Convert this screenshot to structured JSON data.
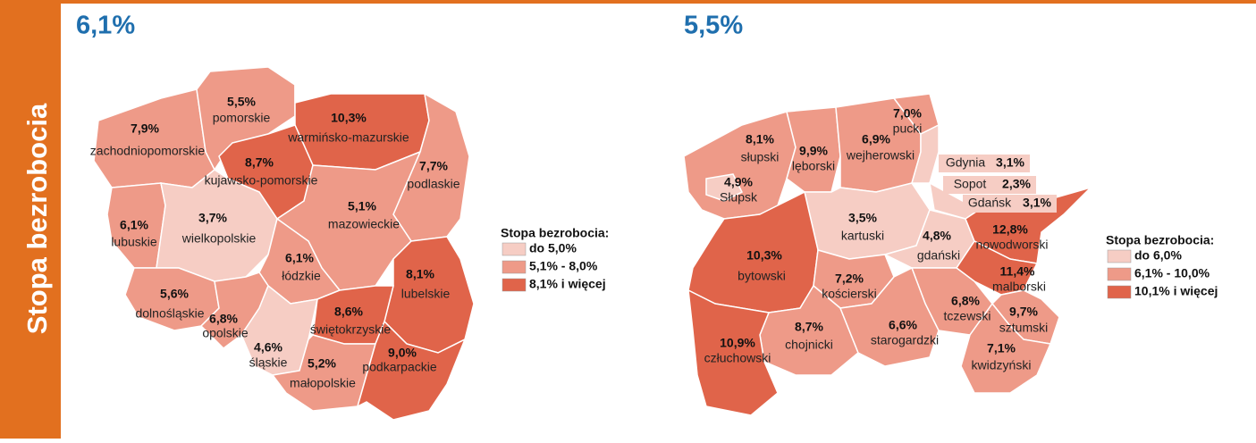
{
  "sidebar_title": "Stopa bezrobocia",
  "maps": [
    {
      "headline": "6,1%",
      "regions": [
        {
          "name": "zachodniopomorskie",
          "value": "7,9%",
          "color": "#ee9a88"
        },
        {
          "name": "pomorskie",
          "value": "5,5%",
          "color": "#ee9a88"
        },
        {
          "name": "warmińsko-mazurskie",
          "value": "10,3%",
          "color": "#e0644a"
        },
        {
          "name": "kujawsko-pomorskie",
          "value": "8,7%",
          "color": "#e0644a"
        },
        {
          "name": "podlaskie",
          "value": "7,7%",
          "color": "#ee9a88"
        },
        {
          "name": "lubuskie",
          "value": "6,1%",
          "color": "#ee9a88"
        },
        {
          "name": "wielkopolskie",
          "value": "3,7%",
          "color": "#f6cdc4"
        },
        {
          "name": "mazowieckie",
          "value": "5,1%",
          "color": "#ee9a88"
        },
        {
          "name": "łódzkie",
          "value": "6,1%",
          "color": "#ee9a88"
        },
        {
          "name": "lubelskie",
          "value": "8,1%",
          "color": "#e0644a"
        },
        {
          "name": "dolnośląskie",
          "value": "5,6%",
          "color": "#ee9a88"
        },
        {
          "name": "opolskie",
          "value": "6,8%",
          "color": "#ee9a88"
        },
        {
          "name": "śląskie",
          "value": "4,6%",
          "color": "#f6cdc4"
        },
        {
          "name": "świętokrzyskie",
          "value": "8,6%",
          "color": "#e0644a"
        },
        {
          "name": "małopolskie",
          "value": "5,2%",
          "color": "#ee9a88"
        },
        {
          "name": "podkarpackie",
          "value": "9,0%",
          "color": "#e0644a"
        }
      ],
      "legend": {
        "title": "Stopa bezrobocia:",
        "items": [
          {
            "label": "do 5,0%",
            "color": "#f6cdc4"
          },
          {
            "label": "5,1% - 8,0%",
            "color": "#ee9a88"
          },
          {
            "label": "8,1% i więcej",
            "color": "#e0644a"
          }
        ]
      }
    },
    {
      "headline": "5,5%",
      "regions": [
        {
          "name": "słupski",
          "value": "8,1%",
          "color": "#ee9a88"
        },
        {
          "name": "Słupsk",
          "value": "4,9%",
          "color": "#f6cdc4"
        },
        {
          "name": "lęborski",
          "value": "9,9%",
          "color": "#ee9a88"
        },
        {
          "name": "wejherowski",
          "value": "6,9%",
          "color": "#ee9a88"
        },
        {
          "name": "pucki",
          "value": "7,0%",
          "color": "#ee9a88"
        },
        {
          "name": "Gdynia",
          "value": "3,1%",
          "color": "#f6cdc4"
        },
        {
          "name": "Sopot",
          "value": "2,3%",
          "color": "#f6cdc4"
        },
        {
          "name": "Gdańsk",
          "value": "3,1%",
          "color": "#f6cdc4"
        },
        {
          "name": "kartuski",
          "value": "3,5%",
          "color": "#f6cdc4"
        },
        {
          "name": "gdański",
          "value": "4,8%",
          "color": "#f6cdc4"
        },
        {
          "name": "nowodworski",
          "value": "12,8%",
          "color": "#e0644a"
        },
        {
          "name": "bytowski",
          "value": "10,3%",
          "color": "#e0644a"
        },
        {
          "name": "kościerski",
          "value": "7,2%",
          "color": "#ee9a88"
        },
        {
          "name": "malborski",
          "value": "11,4%",
          "color": "#e0644a"
        },
        {
          "name": "tczewski",
          "value": "6,8%",
          "color": "#ee9a88"
        },
        {
          "name": "sztumski",
          "value": "9,7%",
          "color": "#ee9a88"
        },
        {
          "name": "chojnicki",
          "value": "8,7%",
          "color": "#ee9a88"
        },
        {
          "name": "starogardzki",
          "value": "6,6%",
          "color": "#ee9a88"
        },
        {
          "name": "człuchowski",
          "value": "10,9%",
          "color": "#e0644a"
        },
        {
          "name": "kwidzyński",
          "value": "7,1%",
          "color": "#ee9a88"
        }
      ],
      "legend": {
        "title": "Stopa bezrobocia:",
        "items": [
          {
            "label": "do 6,0%",
            "color": "#f6cdc4"
          },
          {
            "label": "6,1% - 10,0%",
            "color": "#ee9a88"
          },
          {
            "label": "10,1% i więcej",
            "color": "#e0644a"
          }
        ]
      }
    }
  ]
}
